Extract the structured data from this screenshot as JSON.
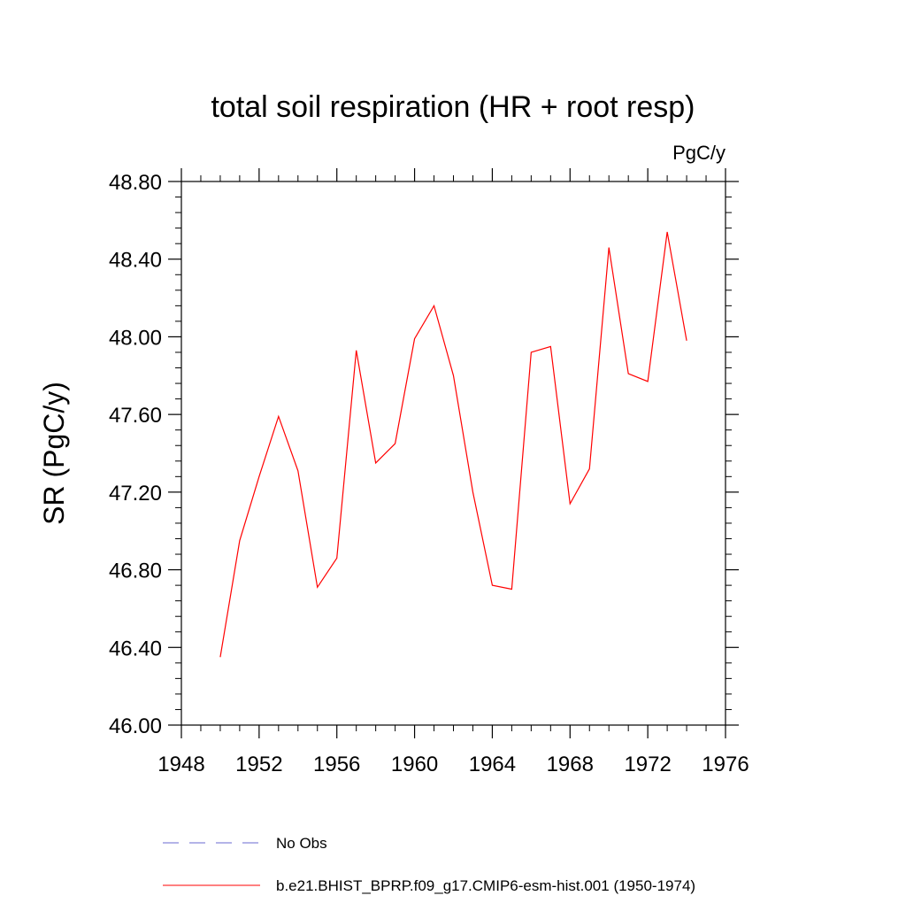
{
  "chart_data": {
    "type": "line",
    "title": "total soil respiration (HR + root resp)",
    "units_label": "PgC/y",
    "ylabel": "SR  (PgC/y)",
    "xlabel": "",
    "xlim": [
      1948,
      1976
    ],
    "ylim": [
      46.0,
      48.8
    ],
    "x_ticks": [
      1948,
      1952,
      1956,
      1960,
      1964,
      1968,
      1972,
      1976
    ],
    "x_tick_labels": [
      "1948",
      "1952",
      "1956",
      "1960",
      "1964",
      "1968",
      "1972",
      "1976"
    ],
    "y_ticks": [
      46.0,
      46.4,
      46.8,
      47.2,
      47.6,
      48.0,
      48.4,
      48.8
    ],
    "y_tick_labels": [
      "46.00",
      "46.40",
      "46.80",
      "47.20",
      "47.60",
      "48.00",
      "48.40",
      "48.80"
    ],
    "grid": false,
    "legend_position": "bottom",
    "series": [
      {
        "name": "b.e21.BHIST_BPRP.f09_g17.CMIP6-esm-hist.001 (1950-1974)",
        "color": "#ff0000",
        "style": "solid",
        "x": [
          1950,
          1951,
          1952,
          1953,
          1954,
          1955,
          1956,
          1957,
          1958,
          1959,
          1960,
          1961,
          1962,
          1963,
          1964,
          1965,
          1966,
          1967,
          1968,
          1969,
          1970,
          1971,
          1972,
          1973,
          1974
        ],
        "y": [
          46.35,
          46.95,
          47.28,
          47.59,
          47.31,
          46.71,
          46.86,
          47.93,
          47.35,
          47.45,
          47.99,
          48.16,
          47.8,
          47.2,
          46.72,
          46.7,
          47.92,
          47.95,
          47.14,
          47.32,
          48.46,
          47.81,
          47.77,
          48.54,
          47.98
        ]
      }
    ],
    "legend": [
      {
        "label": "No Obs",
        "color": "#6a6ad0",
        "style": "dashed"
      },
      {
        "label": "b.e21.BHIST_BPRP.f09_g17.CMIP6-esm-hist.001 (1950-1974)",
        "color": "#ff0000",
        "style": "solid"
      }
    ]
  }
}
